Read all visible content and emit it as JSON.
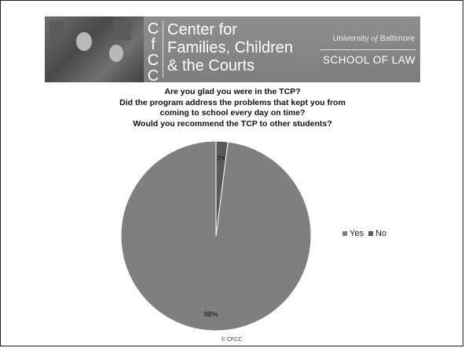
{
  "header": {
    "logo_letters": [
      "C",
      "f",
      "C",
      "C"
    ],
    "center_name_lines": [
      "Center for",
      "Families, Children",
      "& the Courts"
    ],
    "university_prefix": "University",
    "university_of": "of",
    "university_suffix": "Baltimore",
    "school": "SCHOOL OF LAW"
  },
  "chart_data": {
    "type": "pie",
    "title_lines": [
      "Are you glad you were in the TCP?",
      "Did the program address the problems that kept you from",
      "coming to school every day on time?",
      "Would you recommend the TCP to other students?"
    ],
    "categories": [
      "Yes",
      "No"
    ],
    "values": [
      98,
      2
    ],
    "data_labels": [
      "98%",
      "2%"
    ],
    "colors": [
      "#7f7f7f",
      "#595959"
    ],
    "legend_position": "right"
  },
  "footer": {
    "copyright": "© CFCC"
  }
}
